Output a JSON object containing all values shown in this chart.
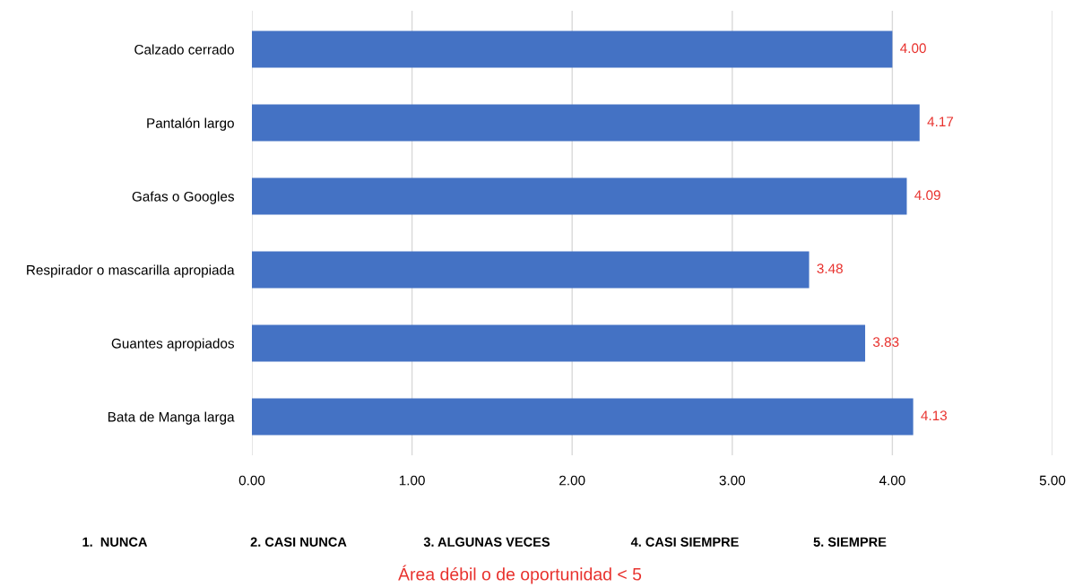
{
  "chart_data": {
    "type": "bar",
    "orientation": "horizontal",
    "categories": [
      "Calzado cerrado",
      "Pantalón largo",
      "Gafas o Googles",
      "Respirador o mascarilla apropiada",
      "Guantes apropiados",
      "Bata de Manga larga"
    ],
    "values": [
      4.0,
      4.17,
      4.09,
      3.48,
      3.83,
      4.13
    ],
    "value_labels": [
      "4.00",
      "4.17",
      "4.09",
      "3.48",
      "3.83",
      "4.13"
    ],
    "color": "#4472c4",
    "xlim": [
      0,
      5
    ],
    "xticks": [
      {
        "value": 0,
        "label": "0.00"
      },
      {
        "value": 1,
        "label": "1.00"
      },
      {
        "value": 2,
        "label": "2.00"
      },
      {
        "value": 3,
        "label": "3.00"
      },
      {
        "value": 4,
        "label": "4.00"
      },
      {
        "value": 5,
        "label": "5.00"
      }
    ],
    "grid": "x",
    "annotations": [
      "1.  NUNCA",
      "2. CASI NUNCA",
      "3. ALGUNAS VECES",
      "4. CASI SIEMPRE",
      "5. SIEMPRE",
      "Área débil o de oportunidad < 5"
    ]
  }
}
